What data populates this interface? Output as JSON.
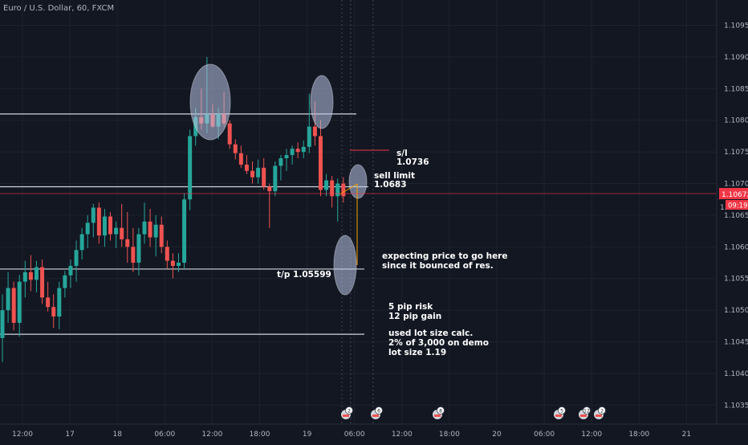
{
  "symbol_title": "Euro / U.S. Dollar, 60, FXCM",
  "price_axis": {
    "ticks": [
      "1.10950",
      "1.10900",
      "1.10850",
      "1.10800",
      "1.10750",
      "1.10700",
      "1.10650",
      "1.10600",
      "1.10550",
      "1.10500",
      "1.10450",
      "1.10400",
      "1.10350"
    ],
    "current_price": "1.10672",
    "countdown": "09:19",
    "extra_label": "1."
  },
  "time_axis": {
    "ticks": [
      "12:00",
      "17",
      "18",
      "06:00",
      "12:00",
      "18:00",
      "19",
      "06:00",
      "12:00",
      "18:00",
      "20",
      "06:00",
      "12:00",
      "18:00",
      "21"
    ]
  },
  "annotations": {
    "sl_label": "s/l",
    "sl_value": "1.0736",
    "sell_label": "sell limit",
    "sell_value": "1.0683",
    "tp_label": "t/p  1.05599",
    "expect_line1": "expecting price to go here",
    "expect_line2": "since it bounced of res.",
    "risk_line1": "5 pip risk",
    "risk_line2": "12 pip gain",
    "lot_line1": "used lot size calc.",
    "lot_line2": "2% of 3,000 on demo",
    "lot_line3": "lot size 1.19"
  },
  "event_markers": [
    "2",
    "6",
    "8",
    "5",
    "12",
    "2"
  ],
  "colors": {
    "background": "#131722",
    "bull": "#26a69a",
    "bear": "#ef5350",
    "current_price": "#f23645",
    "text": "#b2b5be",
    "level_line": "#d1d4dc",
    "ellipse_fill": "#b8c4e6"
  },
  "chart_data": {
    "type": "candlestick",
    "timeframe": "60",
    "x_unit": "hourly bars",
    "ylim": [
      1.1032,
      1.1099
    ],
    "ohlc": [
      [
        1.10456,
        1.10525,
        1.10418,
        1.105
      ],
      [
        1.105,
        1.1056,
        1.1048,
        1.10535
      ],
      [
        1.10535,
        1.10545,
        1.10468,
        1.1048
      ],
      [
        1.1048,
        1.10556,
        1.10458,
        1.10545
      ],
      [
        1.10545,
        1.10578,
        1.1052,
        1.1056
      ],
      [
        1.1056,
        1.10587,
        1.1053,
        1.10548
      ],
      [
        1.10548,
        1.10578,
        1.10528,
        1.10568
      ],
      [
        1.10568,
        1.1058,
        1.1051,
        1.1052
      ],
      [
        1.1052,
        1.10545,
        1.10498,
        1.10505
      ],
      [
        1.10505,
        1.10525,
        1.10472,
        1.1049
      ],
      [
        1.1049,
        1.10545,
        1.1047,
        1.10535
      ],
      [
        1.10535,
        1.10562,
        1.1052,
        1.10555
      ],
      [
        1.10555,
        1.1058,
        1.10535,
        1.1057
      ],
      [
        1.1057,
        1.1061,
        1.10545,
        1.10595
      ],
      [
        1.10595,
        1.1063,
        1.1058,
        1.1062
      ],
      [
        1.1062,
        1.1065,
        1.10598,
        1.10638
      ],
      [
        1.10638,
        1.10668,
        1.10615,
        1.10662
      ],
      [
        1.10662,
        1.1067,
        1.10605,
        1.10618
      ],
      [
        1.10618,
        1.1066,
        1.106,
        1.10648
      ],
      [
        1.10648,
        1.10655,
        1.1061,
        1.1062
      ],
      [
        1.1062,
        1.1064,
        1.10598,
        1.1063
      ],
      [
        1.1063,
        1.10668,
        1.106,
        1.10612
      ],
      [
        1.10612,
        1.10655,
        1.10575,
        1.106
      ],
      [
        1.106,
        1.1063,
        1.1056,
        1.10575
      ],
      [
        1.10575,
        1.1063,
        1.10555,
        1.1062
      ],
      [
        1.1062,
        1.1067,
        1.10605,
        1.1064
      ],
      [
        1.1064,
        1.1066,
        1.106,
        1.10615
      ],
      [
        1.10615,
        1.1065,
        1.10585,
        1.10635
      ],
      [
        1.10635,
        1.10648,
        1.1059,
        1.106
      ],
      [
        1.106,
        1.1061,
        1.10566,
        1.10578
      ],
      [
        1.10578,
        1.1059,
        1.1055,
        1.1057
      ],
      [
        1.1057,
        1.1059,
        1.1056,
        1.10575
      ],
      [
        1.10575,
        1.10685,
        1.10565,
        1.10675
      ],
      [
        1.10675,
        1.10785,
        1.10658,
        1.10775
      ],
      [
        1.10775,
        1.1082,
        1.1076,
        1.10805
      ],
      [
        1.10805,
        1.1085,
        1.10785,
        1.10795
      ],
      [
        1.10795,
        1.109,
        1.1078,
        1.1081
      ],
      [
        1.1081,
        1.10825,
        1.10788,
        1.1079
      ],
      [
        1.1079,
        1.1082,
        1.1077,
        1.1081
      ],
      [
        1.1081,
        1.10845,
        1.1079,
        1.10795
      ],
      [
        1.10795,
        1.108,
        1.10755,
        1.10762
      ],
      [
        1.10762,
        1.1077,
        1.10738,
        1.10748
      ],
      [
        1.10748,
        1.1076,
        1.10725,
        1.1073
      ],
      [
        1.1073,
        1.10745,
        1.10715,
        1.1072
      ],
      [
        1.1072,
        1.10735,
        1.107,
        1.1071
      ],
      [
        1.1071,
        1.10738,
        1.107,
        1.10725
      ],
      [
        1.10725,
        1.1074,
        1.1069,
        1.10695
      ],
      [
        1.10695,
        1.107,
        1.1063,
        1.10688
      ],
      [
        1.10688,
        1.10735,
        1.1068,
        1.10728
      ],
      [
        1.10728,
        1.10745,
        1.10705,
        1.1074
      ],
      [
        1.1074,
        1.10755,
        1.1072,
        1.10745
      ],
      [
        1.10745,
        1.1076,
        1.1073,
        1.10755
      ],
      [
        1.10755,
        1.10765,
        1.1074,
        1.1075
      ],
      [
        1.1075,
        1.10768,
        1.1074,
        1.10758
      ],
      [
        1.10758,
        1.10842,
        1.10748,
        1.1079
      ],
      [
        1.1079,
        1.1083,
        1.1076,
        1.10775
      ],
      [
        1.10775,
        1.108,
        1.1068,
        1.1069
      ],
      [
        1.1069,
        1.10715,
        1.1068,
        1.10705
      ],
      [
        1.10705,
        1.10712,
        1.10662,
        1.1068
      ],
      [
        1.1068,
        1.10708,
        1.1064,
        1.107
      ],
      [
        1.107,
        1.1071,
        1.1067,
        1.1068
      ]
    ],
    "horizontal_levels": [
      1.1081,
      1.10695,
      1.10565,
      1.10462
    ]
  }
}
